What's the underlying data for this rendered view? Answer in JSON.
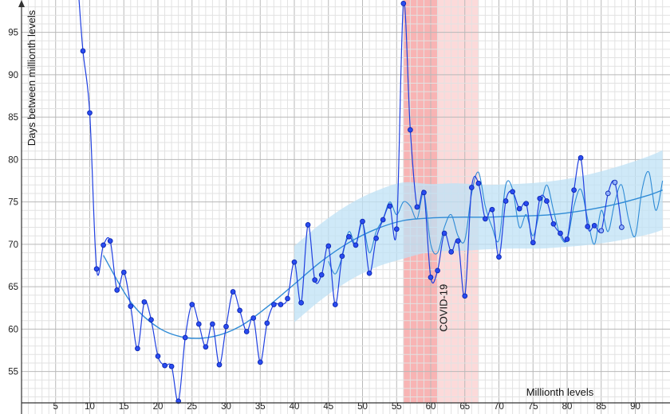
{
  "colors": {
    "data": "#1f3fe0",
    "data_fill": "#2a4cf0",
    "smooth": "#2f8bd6",
    "trend": "#2f8bd6",
    "band": "#bfe1f6",
    "covid_strong": "#f7a7a7",
    "covid_light": "#fbd4d4",
    "grid_major": "#b9b9b9",
    "grid_minor": "#e2e2e2",
    "axis": "#333333"
  },
  "chart_data": {
    "type": "line",
    "xlabel": "Millionth levels",
    "ylabel": "Days between millionth levels",
    "xlim": [
      0,
      94.5
    ],
    "ylim": [
      51.3,
      100.5
    ],
    "x_ticks": [
      5,
      10,
      15,
      20,
      25,
      30,
      35,
      40,
      45,
      50,
      55,
      60,
      65,
      70,
      75,
      80,
      85,
      90
    ],
    "y_ticks": [
      55,
      60,
      65,
      70,
      75,
      80,
      85,
      90,
      95
    ],
    "grid": "major every 5 with minor every 1",
    "annotations": [
      {
        "text": "COVID-19",
        "x": 61,
        "y": 62.5,
        "rotation": -90
      }
    ],
    "highlight_ranges": [
      {
        "from": 56,
        "to": 61,
        "style": "strong"
      },
      {
        "from": 61,
        "to": 67,
        "style": "light"
      }
    ],
    "series": [
      {
        "kind": "points",
        "x": [
          9,
          10,
          11,
          12,
          13,
          14,
          15,
          16,
          17,
          18,
          19,
          20,
          21,
          22,
          23,
          24,
          25,
          26,
          27,
          28,
          29,
          30,
          31,
          32,
          33,
          34,
          35,
          36,
          37,
          38,
          39,
          40,
          41,
          42,
          43,
          44,
          45,
          46,
          47,
          48,
          49,
          50,
          51,
          52,
          53,
          54,
          55,
          56,
          57,
          58,
          59,
          60,
          61,
          62,
          63,
          64,
          65,
          66,
          67,
          68,
          69,
          70,
          71,
          72,
          73,
          74,
          75,
          76,
          77,
          78,
          79,
          80,
          81,
          82,
          83,
          84,
          85,
          86,
          87,
          88
        ],
        "y": [
          92.8,
          85.5,
          67.1,
          69.9,
          70.4,
          64.6,
          66.7,
          62.7,
          57.7,
          63.2,
          61.1,
          56.8,
          55.7,
          55.6,
          51.5,
          59.0,
          62.9,
          60.6,
          57.9,
          60.6,
          55.8,
          60.3,
          64.4,
          62.2,
          59.7,
          61.3,
          56.1,
          60.7,
          62.9,
          62.9,
          63.6,
          67.9,
          63.1,
          72.3,
          65.8,
          66.4,
          69.8,
          62.9,
          68.6,
          70.9,
          69.9,
          72.7,
          66.6,
          70.7,
          72.9,
          74.5,
          71.8,
          98.4,
          83.5,
          74.4,
          76.1,
          66.1,
          66.9,
          71.3,
          69.1,
          70.4,
          63.9,
          76.7,
          77.2,
          73.0,
          74.1,
          68.5,
          75.1,
          76.2,
          74.2,
          74.8,
          70.2,
          75.4,
          75.1,
          72.4,
          71.3,
          70.6,
          76.4,
          80.2,
          72.1,
          72.2,
          71.6,
          76.0,
          77.3,
          72.0
        ]
      },
      {
        "kind": "smoothed",
        "x": [
          45,
          46,
          47,
          48,
          49,
          50,
          51,
          52,
          53,
          54,
          55,
          56,
          57,
          58,
          59,
          60,
          61,
          62,
          63,
          64,
          65,
          66,
          67,
          68,
          69,
          70,
          71,
          72,
          73,
          74,
          75,
          76,
          77,
          78,
          79,
          80,
          81,
          82,
          83,
          84,
          85,
          86,
          87,
          88,
          89,
          90,
          91,
          92,
          93,
          94
        ],
        "y": [
          68.0,
          66.5,
          68.5,
          71.5,
          70.0,
          72.5,
          69.0,
          71.5,
          73.0,
          75.0,
          73.5,
          75.0,
          74.5,
          73.0,
          76.0,
          70.0,
          69.0,
          72.0,
          73.5,
          71.0,
          70.5,
          76.0,
          78.5,
          74.5,
          72.0,
          70.5,
          77.0,
          76.5,
          72.0,
          73.5,
          71.0,
          74.0,
          77.0,
          74.0,
          71.0,
          70.5,
          74.5,
          76.5,
          73.0,
          70.0,
          74.0,
          71.5,
          75.0,
          77.0,
          73.0,
          71.0,
          76.5,
          78.5,
          74.0,
          77.5
        ]
      },
      {
        "kind": "trend",
        "x": [
          12,
          16,
          20,
          24,
          28,
          32,
          36,
          40,
          44,
          48,
          52,
          56,
          60,
          64,
          68,
          72,
          76,
          80,
          84,
          88,
          92,
          94
        ],
        "y": [
          68.7,
          63.2,
          60.2,
          59.0,
          59.1,
          60.3,
          62.6,
          65.3,
          68.0,
          70.2,
          71.8,
          72.8,
          73.1,
          73.2,
          73.2,
          73.3,
          73.4,
          73.7,
          74.2,
          74.9,
          75.8,
          76.4
        ],
        "band_from_x": 40,
        "band_halfwidth": [
          4.5,
          4.5,
          4.5,
          4.5,
          4.5,
          4.5,
          4.5,
          4.5,
          4.5,
          4.5,
          4.5,
          4.5,
          4.0,
          4.0,
          3.8,
          3.8,
          3.9,
          4.0,
          4.2,
          4.4,
          4.6,
          4.7
        ]
      }
    ]
  }
}
